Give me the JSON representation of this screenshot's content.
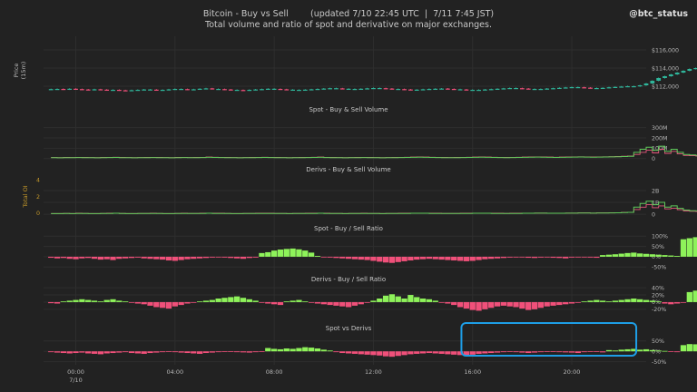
{
  "header": {
    "title": "Bitcoin - Buy vs Sell",
    "updated": "(updated 7/10 22:45 UTC  |  7/11 7:45 JST)",
    "subtitle": "Total volume and ratio of spot and derivative on major exchanges.",
    "handle": "@btc_status"
  },
  "colors": {
    "background": "#222222",
    "grid": "#2e2e2e",
    "buy": "#8ef25a",
    "sell": "#f0507a",
    "neutral_candle": "#2fb59a",
    "volume_line": "#5fc85a",
    "highlight_box": "#1e9ee6",
    "total_oi_label": "#c79a2a"
  },
  "x_axis": {
    "ticks": [
      "00:00",
      "04:00",
      "08:00",
      "12:00",
      "16:00",
      "20:00"
    ],
    "tick_hours": [
      0,
      4,
      8,
      12,
      16,
      20
    ],
    "date_label": "7/10",
    "range_hours": [
      -1.3,
      23.0
    ]
  },
  "chart_data": [
    {
      "type": "candlestick",
      "ylabel": "Price\n(15m)",
      "ylim": [
        110000,
        117500
      ],
      "yticks": [
        "$116,000",
        "$114,000",
        "$112,000"
      ],
      "ytick_values": [
        116000,
        114000,
        112000
      ],
      "x_start": -1.0,
      "step_hours": 0.25,
      "closes": [
        111680,
        111700,
        111650,
        111720,
        111680,
        111640,
        111600,
        111660,
        111620,
        111580,
        111600,
        111550,
        111520,
        111560,
        111600,
        111640,
        111620,
        111580,
        111600,
        111650,
        111700,
        111680,
        111640,
        111660,
        111720,
        111760,
        111700,
        111680,
        111640,
        111600,
        111580,
        111550,
        111600,
        111640,
        111680,
        111720,
        111700,
        111660,
        111620,
        111600,
        111580,
        111620,
        111660,
        111700,
        111740,
        111780,
        111760,
        111720,
        111700,
        111680,
        111720,
        111760,
        111800,
        111780,
        111740,
        111700,
        111680,
        111640,
        111600,
        111620,
        111660,
        111700,
        111720,
        111740,
        111700,
        111660,
        111640,
        111600,
        111580,
        111600,
        111640,
        111680,
        111720,
        111760,
        111800,
        111780,
        111740,
        111700,
        111680,
        111700,
        111740,
        111780,
        111820,
        111860,
        111900,
        111880,
        111840,
        111800,
        111780,
        111820,
        111880,
        111920,
        111960,
        112000,
        111980,
        112100,
        112300,
        112600,
        112900,
        113100,
        113300,
        113500,
        113700,
        113900,
        114000,
        114100,
        114200,
        114100,
        114000,
        113950,
        114000,
        114100,
        114150,
        114200,
        114100,
        114050,
        114000,
        114100,
        114200,
        114250,
        114300,
        114400,
        114500,
        114600,
        114500,
        114550,
        114600,
        114700,
        114800,
        115000,
        116500,
        117000,
        116600,
        116300,
        116200,
        116300,
        116200,
        116100,
        116150,
        116100
      ]
    },
    {
      "type": "line",
      "title": "Spot - Buy & Sell Volume",
      "ylim": [
        -20,
        420
      ],
      "yticks": [
        "300M",
        "200M",
        "100M",
        "0"
      ],
      "ytick_values": [
        300,
        200,
        100,
        0
      ],
      "x_start": -1.0,
      "step_hours": 0.25,
      "buy": [
        8,
        7,
        9,
        8,
        10,
        9,
        8,
        7,
        9,
        10,
        11,
        9,
        8,
        7,
        8,
        9,
        10,
        9,
        8,
        7,
        9,
        10,
        8,
        9,
        10,
        12,
        11,
        10,
        9,
        8,
        7,
        8,
        9,
        10,
        11,
        10,
        9,
        8,
        7,
        8,
        9,
        10,
        11,
        12,
        10,
        9,
        8,
        7,
        8,
        9,
        10,
        9,
        8,
        7,
        8,
        9,
        10,
        11,
        12,
        13,
        12,
        11,
        10,
        9,
        8,
        9,
        10,
        11,
        12,
        13,
        12,
        11,
        10,
        9,
        10,
        11,
        12,
        13,
        14,
        13,
        12,
        11,
        12,
        13,
        14,
        15,
        14,
        13,
        14,
        15,
        16,
        18,
        20,
        22,
        60,
        90,
        110,
        80,
        120,
        70,
        90,
        60,
        40,
        35,
        30,
        28,
        25,
        22,
        20,
        18,
        20,
        22,
        25,
        28,
        30,
        28,
        26,
        24,
        22,
        20,
        22,
        24,
        26,
        28,
        30,
        40,
        380,
        150,
        90,
        80,
        75,
        70,
        60,
        40,
        30,
        25,
        20,
        18
      ],
      "sell": [
        10,
        9,
        11,
        10,
        12,
        11,
        10,
        9,
        11,
        12,
        13,
        11,
        10,
        9,
        10,
        11,
        12,
        11,
        10,
        9,
        11,
        12,
        10,
        11,
        12,
        14,
        13,
        12,
        11,
        10,
        9,
        10,
        11,
        12,
        13,
        12,
        11,
        10,
        9,
        10,
        11,
        12,
        13,
        14,
        12,
        11,
        10,
        9,
        10,
        11,
        12,
        11,
        10,
        9,
        10,
        11,
        12,
        13,
        14,
        15,
        14,
        13,
        12,
        11,
        10,
        11,
        12,
        13,
        14,
        15,
        14,
        13,
        12,
        11,
        12,
        13,
        14,
        15,
        16,
        15,
        14,
        13,
        14,
        15,
        16,
        17,
        16,
        15,
        16,
        17,
        18,
        20,
        22,
        24,
        40,
        60,
        80,
        55,
        90,
        50,
        70,
        45,
        30,
        28,
        25,
        22,
        20,
        18,
        16,
        15,
        17,
        19,
        22,
        25,
        27,
        25,
        23,
        21,
        19,
        17,
        19,
        21,
        23,
        25,
        27,
        35,
        250,
        110,
        70,
        60,
        55,
        50,
        45,
        30,
        25,
        20,
        18,
        15
      ]
    },
    {
      "type": "line",
      "title": "Derivs - Buy & Sell Volume",
      "ylabel": "Total OI",
      "ylim": [
        -0.3,
        3.3
      ],
      "yticks": [
        "2B",
        "1B",
        "0"
      ],
      "ytick_values": [
        2,
        1,
        0
      ],
      "left_ticks": [
        "4",
        "2",
        "0"
      ],
      "left_tick_values": [
        4,
        2,
        0
      ],
      "left_ylim": [
        -0.6,
        4.6
      ],
      "x_start": -1.0,
      "step_hours": 0.25,
      "buy": [
        0.05,
        0.05,
        0.06,
        0.05,
        0.07,
        0.06,
        0.05,
        0.05,
        0.06,
        0.07,
        0.08,
        0.06,
        0.05,
        0.05,
        0.06,
        0.06,
        0.07,
        0.06,
        0.05,
        0.05,
        0.06,
        0.07,
        0.06,
        0.06,
        0.07,
        0.08,
        0.07,
        0.07,
        0.06,
        0.05,
        0.05,
        0.06,
        0.06,
        0.07,
        0.07,
        0.07,
        0.06,
        0.06,
        0.05,
        0.06,
        0.06,
        0.07,
        0.07,
        0.08,
        0.07,
        0.06,
        0.06,
        0.05,
        0.06,
        0.06,
        0.07,
        0.06,
        0.06,
        0.05,
        0.06,
        0.06,
        0.07,
        0.07,
        0.08,
        0.08,
        0.08,
        0.07,
        0.07,
        0.06,
        0.06,
        0.06,
        0.07,
        0.07,
        0.08,
        0.08,
        0.08,
        0.07,
        0.07,
        0.06,
        0.07,
        0.07,
        0.08,
        0.08,
        0.09,
        0.09,
        0.08,
        0.08,
        0.08,
        0.09,
        0.09,
        0.1,
        0.1,
        0.09,
        0.1,
        0.1,
        0.11,
        0.12,
        0.14,
        0.16,
        0.6,
        0.9,
        1.1,
        0.8,
        1.0,
        0.6,
        0.7,
        0.5,
        0.35,
        0.3,
        0.28,
        0.25,
        0.22,
        0.2,
        0.18,
        0.16,
        0.18,
        0.2,
        0.22,
        0.25,
        0.27,
        0.25,
        0.23,
        0.21,
        0.19,
        0.17,
        0.19,
        0.21,
        0.23,
        0.25,
        0.27,
        0.35,
        2.8,
        1.2,
        0.8,
        0.7,
        0.6,
        0.55,
        0.5,
        0.35,
        0.3,
        0.25,
        0.2,
        0.18
      ],
      "sell": [
        0.06,
        0.06,
        0.07,
        0.06,
        0.08,
        0.07,
        0.06,
        0.06,
        0.07,
        0.08,
        0.09,
        0.07,
        0.06,
        0.06,
        0.07,
        0.07,
        0.08,
        0.07,
        0.06,
        0.06,
        0.07,
        0.08,
        0.07,
        0.07,
        0.08,
        0.09,
        0.08,
        0.08,
        0.07,
        0.06,
        0.06,
        0.07,
        0.07,
        0.08,
        0.08,
        0.08,
        0.07,
        0.07,
        0.06,
        0.07,
        0.07,
        0.08,
        0.08,
        0.09,
        0.08,
        0.07,
        0.07,
        0.06,
        0.07,
        0.07,
        0.08,
        0.07,
        0.07,
        0.06,
        0.07,
        0.07,
        0.08,
        0.08,
        0.09,
        0.09,
        0.09,
        0.08,
        0.08,
        0.07,
        0.07,
        0.07,
        0.08,
        0.08,
        0.09,
        0.09,
        0.09,
        0.08,
        0.08,
        0.07,
        0.08,
        0.08,
        0.09,
        0.09,
        0.1,
        0.1,
        0.09,
        0.09,
        0.09,
        0.1,
        0.1,
        0.11,
        0.11,
        0.1,
        0.11,
        0.11,
        0.12,
        0.13,
        0.15,
        0.17,
        0.4,
        0.6,
        0.8,
        0.55,
        0.7,
        0.45,
        0.5,
        0.38,
        0.28,
        0.25,
        0.23,
        0.2,
        0.18,
        0.16,
        0.15,
        0.14,
        0.16,
        0.18,
        0.2,
        0.22,
        0.24,
        0.22,
        0.2,
        0.18,
        0.17,
        0.15,
        0.17,
        0.19,
        0.21,
        0.23,
        0.25,
        0.3,
        2.0,
        0.9,
        0.6,
        0.5,
        0.45,
        0.4,
        0.38,
        0.28,
        0.24,
        0.2,
        0.17,
        0.15
      ]
    },
    {
      "type": "bar",
      "title": "Spot - Buy / Sell Ratio",
      "ylim": [
        -40,
        110
      ],
      "yticks": [
        "100%",
        "50%",
        "0%",
        "-50%"
      ],
      "ytick_values": [
        100,
        50,
        0,
        -50
      ],
      "x_start": -1.0,
      "step_hours": 0.25,
      "values": [
        -5,
        -8,
        -6,
        -10,
        -12,
        -8,
        -6,
        -10,
        -14,
        -12,
        -16,
        -10,
        -8,
        -6,
        -4,
        -8,
        -10,
        -12,
        -14,
        -18,
        -20,
        -16,
        -12,
        -10,
        -8,
        -6,
        -4,
        -2,
        -4,
        -6,
        -8,
        -10,
        -6,
        -4,
        18,
        22,
        30,
        35,
        38,
        40,
        36,
        30,
        20,
        4,
        -2,
        -4,
        -6,
        -8,
        -10,
        -12,
        -14,
        -16,
        -20,
        -24,
        -28,
        -30,
        -26,
        -22,
        -18,
        -14,
        -12,
        -10,
        -12,
        -14,
        -16,
        -18,
        -20,
        -22,
        -20,
        -16,
        -12,
        -10,
        -8,
        -6,
        -4,
        -2,
        -3,
        -5,
        -6,
        -4,
        -3,
        -5,
        -6,
        -8,
        -4,
        -2,
        -3,
        -4,
        -5,
        8,
        10,
        12,
        15,
        18,
        20,
        16,
        14,
        12,
        10,
        8,
        6,
        4,
        85,
        90,
        95,
        100,
        92,
        80,
        72,
        65,
        55,
        40,
        25,
        12,
        4,
        -2,
        -4,
        -6,
        -8,
        -10,
        -12,
        -14,
        -12,
        -10,
        -8,
        -6,
        -4,
        -6,
        -8,
        -12,
        -16,
        -20,
        60,
        50,
        45,
        40,
        38,
        35,
        30,
        28,
        22
      ]
    },
    {
      "type": "bar",
      "title": "Derivs - Buy / Sell Ratio",
      "ylim": [
        -28,
        48
      ],
      "yticks": [
        "40%",
        "20%",
        "0%",
        "-20%"
      ],
      "ytick_values": [
        40,
        20,
        0,
        -20
      ],
      "x_start": -1.0,
      "step_hours": 0.25,
      "values": [
        -3,
        -4,
        2,
        4,
        6,
        8,
        6,
        4,
        2,
        6,
        8,
        4,
        2,
        -2,
        -4,
        -6,
        -10,
        -14,
        -16,
        -18,
        -12,
        -8,
        -4,
        -2,
        2,
        4,
        6,
        10,
        12,
        14,
        16,
        12,
        8,
        4,
        -2,
        -4,
        -6,
        -8,
        2,
        4,
        6,
        2,
        -2,
        -4,
        -6,
        -8,
        -10,
        -12,
        -14,
        -10,
        -6,
        -2,
        4,
        10,
        18,
        22,
        16,
        10,
        20,
        14,
        10,
        8,
        4,
        -2,
        -4,
        -8,
        -14,
        -18,
        -22,
        -24,
        -20,
        -16,
        -12,
        -10,
        -12,
        -14,
        -18,
        -22,
        -20,
        -16,
        -12,
        -10,
        -8,
        -6,
        -4,
        -2,
        2,
        4,
        6,
        4,
        2,
        4,
        6,
        8,
        10,
        8,
        6,
        4,
        2,
        -4,
        -6,
        -4,
        -2,
        28,
        32,
        34,
        30,
        28,
        24,
        20,
        16,
        12,
        8,
        6,
        4,
        2,
        6,
        8,
        10,
        8,
        6,
        4,
        2,
        -2,
        -4,
        -6,
        -8,
        -10,
        -8,
        -6,
        -4,
        34,
        30,
        26,
        22,
        18,
        16,
        14,
        12,
        10
      ]
    },
    {
      "type": "bar",
      "title": "Spot vs Derivs",
      "ylim": [
        -56,
        84
      ],
      "yticks": [
        "50%",
        "0%",
        "-50%"
      ],
      "ytick_values": [
        50,
        0,
        -50
      ],
      "x_start": -1.0,
      "step_hours": 0.25,
      "values": [
        -4,
        -6,
        -8,
        -10,
        -8,
        -6,
        -10,
        -12,
        -14,
        -10,
        -8,
        -6,
        -4,
        -8,
        -10,
        -12,
        -8,
        -6,
        -4,
        -2,
        -4,
        -6,
        -8,
        -10,
        -12,
        -8,
        -6,
        -4,
        -2,
        -3,
        -4,
        -5,
        -6,
        -4,
        -2,
        16,
        12,
        10,
        14,
        12,
        16,
        20,
        18,
        14,
        8,
        4,
        -4,
        -8,
        -10,
        -12,
        -14,
        -16,
        -18,
        -20,
        -24,
        -26,
        -22,
        -18,
        -14,
        -12,
        -10,
        -8,
        -10,
        -12,
        -14,
        -16,
        -18,
        -20,
        -16,
        -12,
        -10,
        -8,
        -6,
        -4,
        -2,
        -4,
        -6,
        -8,
        -6,
        -4,
        -2,
        -3,
        -4,
        -5,
        -6,
        -8,
        -4,
        -2,
        -3,
        -5,
        6,
        4,
        8,
        10,
        12,
        8,
        10,
        6,
        4,
        2,
        -2,
        -4,
        30,
        35,
        34,
        45,
        52,
        48,
        40,
        34,
        30,
        20,
        10,
        4,
        -2,
        -4,
        -6,
        -8,
        -10,
        -12,
        -10,
        -8,
        -6,
        -4,
        -8,
        -10,
        -12,
        -14,
        -16,
        -18,
        20,
        10,
        8,
        6,
        8,
        10,
        8,
        10,
        12
      ]
    }
  ],
  "annotation": {
    "highlight": "spot-vs-derivs buy burst 16:00-18:30 and 21:30-23:00"
  }
}
